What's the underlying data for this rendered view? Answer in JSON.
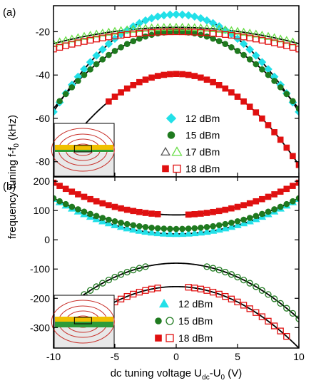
{
  "figure": {
    "panel_a_label": "(a)",
    "panel_b_label": "(b)",
    "ylabel": "frequency tuning f-f",
    "ylabel_sub": "0",
    "ylabel_unit": " (kHz)",
    "xlabel": "dc tuning voltage U",
    "xlabel_sub": "dc",
    "xlabel_mid": "-U",
    "xlabel_sub2": "0",
    "xlabel_unit": " (V)"
  },
  "colors": {
    "cyan": "#22e0e8",
    "green": "#1f7a1f",
    "green_light": "#66dd44",
    "red": "#e01010",
    "fit": "#000000",
    "field_lines": "#c8302a",
    "electrode": "#f0c000",
    "beam_green": "#2e9b3a",
    "inset_bg": "#e8e8e8"
  },
  "chart_data": [
    {
      "panel": "a",
      "type": "scatter",
      "xlim": [
        -10,
        10
      ],
      "ylim": [
        -87,
        -8
      ],
      "yticks": [
        -80,
        -60,
        -40,
        -20
      ],
      "xticks": [
        -10,
        -5,
        0,
        5,
        10
      ],
      "legend_position": "lower-right",
      "series": [
        {
          "name": "12 dBm",
          "marker": "diamond",
          "color": "cyan",
          "filled": true,
          "x_range": [
            -10,
            10
          ],
          "step": 0.5,
          "curve": {
            "a": -0.45,
            "c": -12
          },
          "fit": true
        },
        {
          "name": "15 dBm",
          "marker": "circle",
          "color": "green",
          "filled": true,
          "x_range": [
            -9.5,
            10
          ],
          "step": 0.5,
          "curve": {
            "a": -0.355,
            "c": -20
          },
          "fit": true
        },
        {
          "name": "17 dBm",
          "marker": "triangle",
          "color": "green_light",
          "filled": false,
          "x_range": [
            -10,
            9.5
          ],
          "step": 0.5,
          "curve": {
            "a": -0.075,
            "c": -18
          },
          "fit": true
        },
        {
          "name": "18 dBm",
          "marker": "square",
          "color": "red",
          "filled": true,
          "x_range": [
            -5.5,
            10
          ],
          "step": 0.5,
          "curve": {
            "a": -0.42,
            "c": -39.5
          },
          "fit": true
        },
        {
          "name": "18 dBm (open)",
          "marker": "square",
          "color": "red",
          "filled": false,
          "x_range": [
            -10,
            10
          ],
          "step": 0.5,
          "curve": {
            "a": -0.08,
            "c": -20
          },
          "fit": false
        }
      ],
      "legend": [
        {
          "label": "12 dBm",
          "markers": [
            [
              "diamond",
              "cyan",
              true
            ]
          ]
        },
        {
          "label": "15 dBm",
          "markers": [
            [
              "circle",
              "green",
              true
            ]
          ]
        },
        {
          "label": "17 dBm",
          "markers": [
            [
              "triangle",
              "#555555",
              false
            ],
            [
              "triangle",
              "green_light",
              false
            ]
          ]
        },
        {
          "label": "18 dBm",
          "markers": [
            [
              "square",
              "red",
              true
            ],
            [
              "square",
              "red",
              false
            ]
          ]
        }
      ]
    },
    {
      "panel": "b",
      "type": "scatter",
      "xlim": [
        -10,
        10
      ],
      "ylim": [
        -370,
        215
      ],
      "yticks": [
        -300,
        -200,
        -100,
        0,
        100,
        200
      ],
      "xticks": [
        -10,
        -5,
        0,
        5,
        10
      ],
      "legend_position": "lower-right",
      "series": [
        {
          "name": "12 dBm",
          "marker": "triangle",
          "color": "cyan",
          "filled": true,
          "x_range": [
            -10,
            10
          ],
          "step": 0.5,
          "curve": {
            "a": 1.2,
            "c": 20
          },
          "fit": true
        },
        {
          "name": "15 dBm",
          "marker": "circle",
          "color": "green",
          "filled": true,
          "x_range": [
            -10,
            10
          ],
          "step": 0.5,
          "curve": {
            "a": 1.05,
            "c": 37
          },
          "fit": true
        },
        {
          "name": "18 dBm",
          "marker": "square",
          "color": "red",
          "filled": true,
          "x_range": [
            -10,
            10
          ],
          "step": 0.5,
          "skip_range": [
            -1.5,
            1.0
          ],
          "curve": {
            "a": 1.1,
            "c": 85
          },
          "fit": true
        },
        {
          "name": "15 dBm (open)",
          "marker": "circle",
          "color": "green",
          "filled": false,
          "x_range": [
            -8,
            10
          ],
          "step": 0.5,
          "skip_range": [
            -2.5,
            2.5
          ],
          "curve": {
            "a": -1.9,
            "c": -80
          },
          "fit": true
        },
        {
          "name": "18 dBm (open)",
          "marker": "square",
          "color": "red",
          "filled": false,
          "x_range": [
            -5,
            9
          ],
          "step": 0.5,
          "skip_range": [
            -1.5,
            1.0
          ],
          "curve": {
            "a": -2.1,
            "c": -160
          },
          "fit": true,
          "fit_range": [
            -10,
            10
          ]
        }
      ],
      "legend": [
        {
          "label": "12 dBm",
          "markers": [
            [
              "triangle",
              "cyan",
              true
            ]
          ]
        },
        {
          "label": "15 dBm",
          "markers": [
            [
              "circle",
              "green",
              true
            ],
            [
              "circle",
              "green",
              false
            ]
          ]
        },
        {
          "label": "18 dBm",
          "markers": [
            [
              "square",
              "red",
              true
            ],
            [
              "square",
              "red",
              false
            ]
          ]
        }
      ]
    }
  ]
}
